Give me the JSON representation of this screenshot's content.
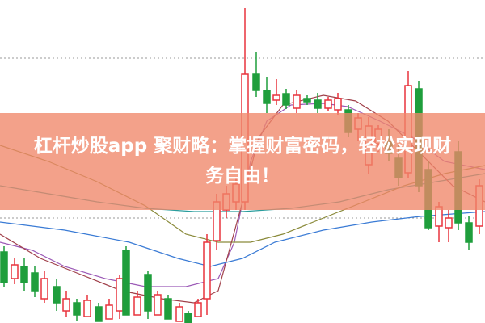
{
  "banner": {
    "title_lines": [
      "杠杆炒股app 聚财略：掌握财富密码，轻松实现财",
      "务自由！"
    ]
  }
}
